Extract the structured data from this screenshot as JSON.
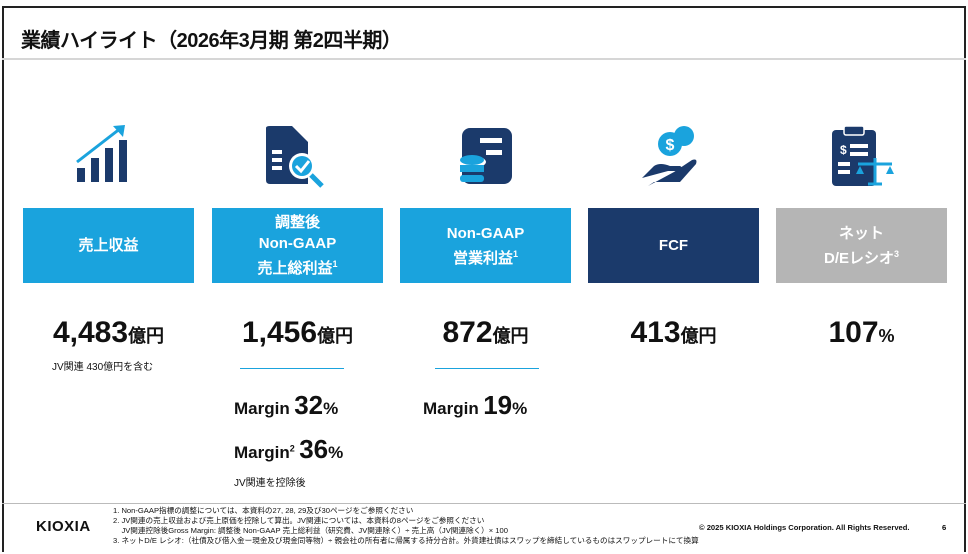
{
  "title": "業績ハイライト（2026年3月期 第2四半期）",
  "colors": {
    "light_blue": "#1aa3dd",
    "navy": "#1b3a6b",
    "grey": "#b5b5b5"
  },
  "cards": [
    {
      "label": "売上収益",
      "icon": "growth-chart-icon",
      "value": "4,483",
      "unit": "億円",
      "note": "JV関連 430億円を含む"
    },
    {
      "label_lines": [
        "調整後",
        "Non-GAAP",
        "売上総利益"
      ],
      "sup": "1",
      "icon": "document-check-icon",
      "value": "1,456",
      "unit": "億円",
      "margins": [
        {
          "label": "Margin",
          "value": "32",
          "unit": "%"
        },
        {
          "label": "Margin",
          "sup": "2",
          "value": "36",
          "unit": "%"
        }
      ],
      "note": "JV関連を控除後"
    },
    {
      "label_lines": [
        "Non-GAAP",
        "営業利益"
      ],
      "sup": "1",
      "icon": "coins-database-icon",
      "value": "872",
      "unit": "億円",
      "margins": [
        {
          "label": "Margin",
          "value": "19",
          "unit": "%"
        }
      ]
    },
    {
      "label": "FCF",
      "icon": "hand-coins-icon",
      "value": "413",
      "unit": "億円"
    },
    {
      "label_lines": [
        "ネット",
        "D/Eレシオ"
      ],
      "sup": "3",
      "icon": "clipboard-scale-icon",
      "value": "107",
      "unit": "%"
    }
  ],
  "footer": {
    "logo": "KIOXIA",
    "footnotes": [
      "1. Non-GAAP指標の調整については、本資料の27, 28, 29及び30ページをご参照ください",
      "2. JV関連の売上収益および売上原価を控除して算出。JV関連については、本資料の8ページをご参照ください",
      "    JV関連控除後Gross Margin: 調整後 Non-GAAP 売上総利益（研究費、JV関連除く）÷ 売上高（JV関連除く）× 100",
      "3. ネットD/E レシオ:（社債及び借入金ー現金及び現金同等物）÷ 親会社の所有者に帰属する持分合計。外貨建社債はスワップを締結しているものはスワップレートにて換算"
    ],
    "copyright": "© 2025 KIOXIA Holdings Corporation. All Rights Reserved.",
    "page": "6"
  }
}
